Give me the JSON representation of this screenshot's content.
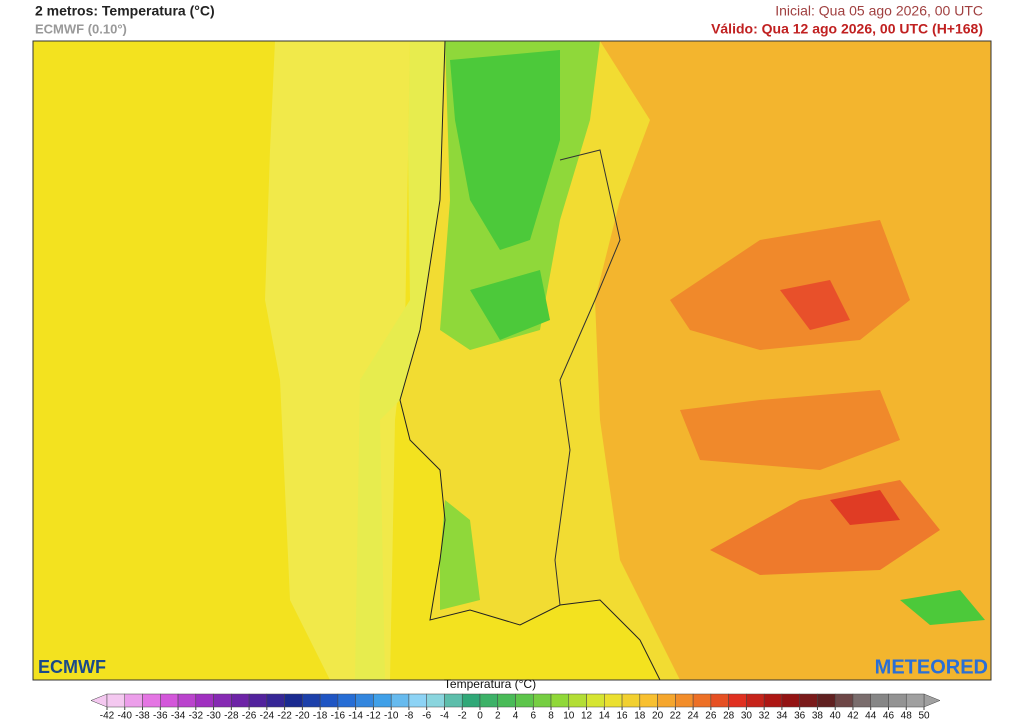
{
  "header": {
    "title": "2 metros: Temperatura (°C)",
    "model": "ECMWF (0.10°)",
    "initial": "Inicial: Qua 05 ago 2026, 00 UTC",
    "valid": "Válido: Qua 12 ago 2026, 00 UTC (H+168)"
  },
  "logos": {
    "left": "ECMWF",
    "right": "METEORED"
  },
  "colorbar": {
    "title": "Temperatura (°C)",
    "ticks": [
      -42,
      -40,
      -38,
      -36,
      -34,
      -32,
      -30,
      -28,
      -26,
      -24,
      -22,
      -20,
      -18,
      -16,
      -14,
      -12,
      -10,
      -8,
      -6,
      -4,
      -2,
      0,
      2,
      4,
      6,
      8,
      10,
      12,
      14,
      16,
      18,
      20,
      22,
      24,
      26,
      28,
      30,
      32,
      34,
      36,
      38,
      40,
      42,
      44,
      46,
      48,
      50
    ]
  }
}
